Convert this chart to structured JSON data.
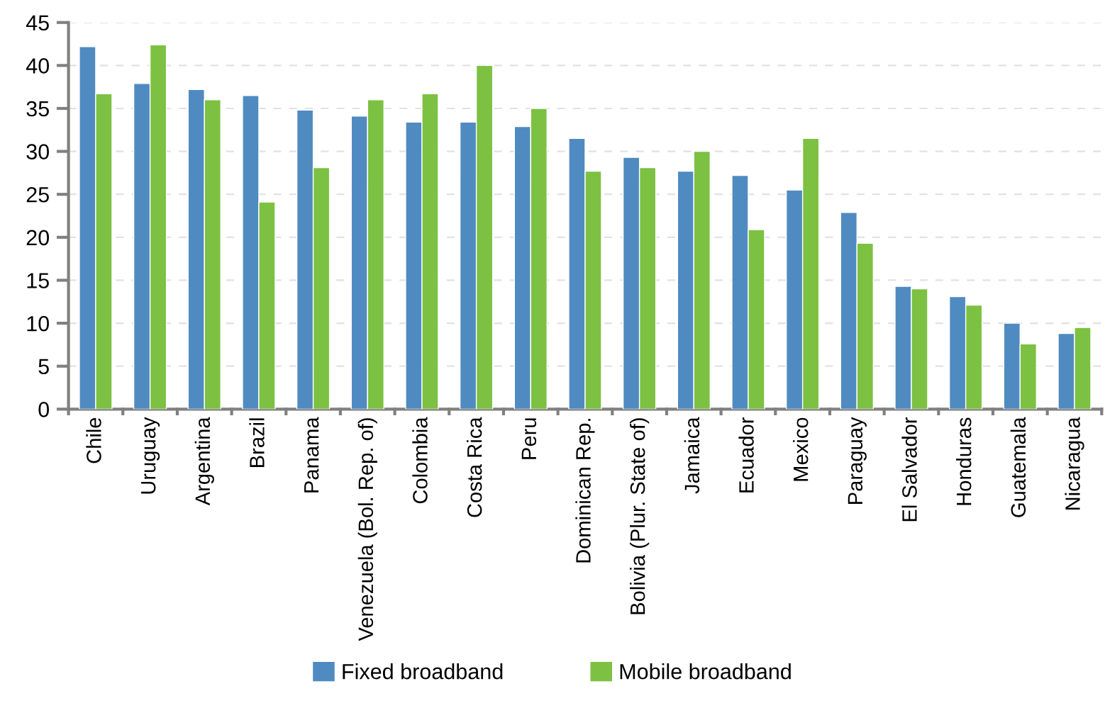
{
  "chart_data": {
    "type": "bar",
    "categories": [
      "Chile",
      "Uruguay",
      "Argentina",
      "Brazil",
      "Panama",
      "Venezuela (Bol. Rep. of)",
      "Colombia",
      "Costa Rica",
      "Peru",
      "Dominican Rep.",
      "Bolivia (Plur. State of)",
      "Jamaica",
      "Ecuador",
      "Mexico",
      "Paraguay",
      "El Salvador",
      "Honduras",
      "Guatemala",
      "Nicaragua"
    ],
    "series": [
      {
        "name": "Fixed broadband",
        "color": "#4f8bc0",
        "values": [
          42.2,
          37.9,
          37.2,
          36.5,
          34.8,
          34.1,
          33.4,
          33.4,
          32.9,
          31.5,
          29.3,
          27.7,
          27.2,
          25.5,
          22.9,
          14.3,
          13.1,
          10.0,
          8.8
        ]
      },
      {
        "name": "Mobile broadband",
        "color": "#7cc142",
        "values": [
          36.7,
          42.4,
          36.0,
          24.1,
          28.1,
          36.0,
          36.7,
          40.0,
          35.0,
          27.7,
          28.1,
          30.0,
          20.9,
          31.5,
          19.3,
          14.0,
          12.1,
          7.6,
          9.5
        ]
      }
    ],
    "ylim": [
      0,
      45
    ],
    "yticks": [
      0,
      5,
      10,
      15,
      20,
      25,
      30,
      35,
      40,
      45
    ],
    "grid": "y",
    "legend": "bottom"
  }
}
